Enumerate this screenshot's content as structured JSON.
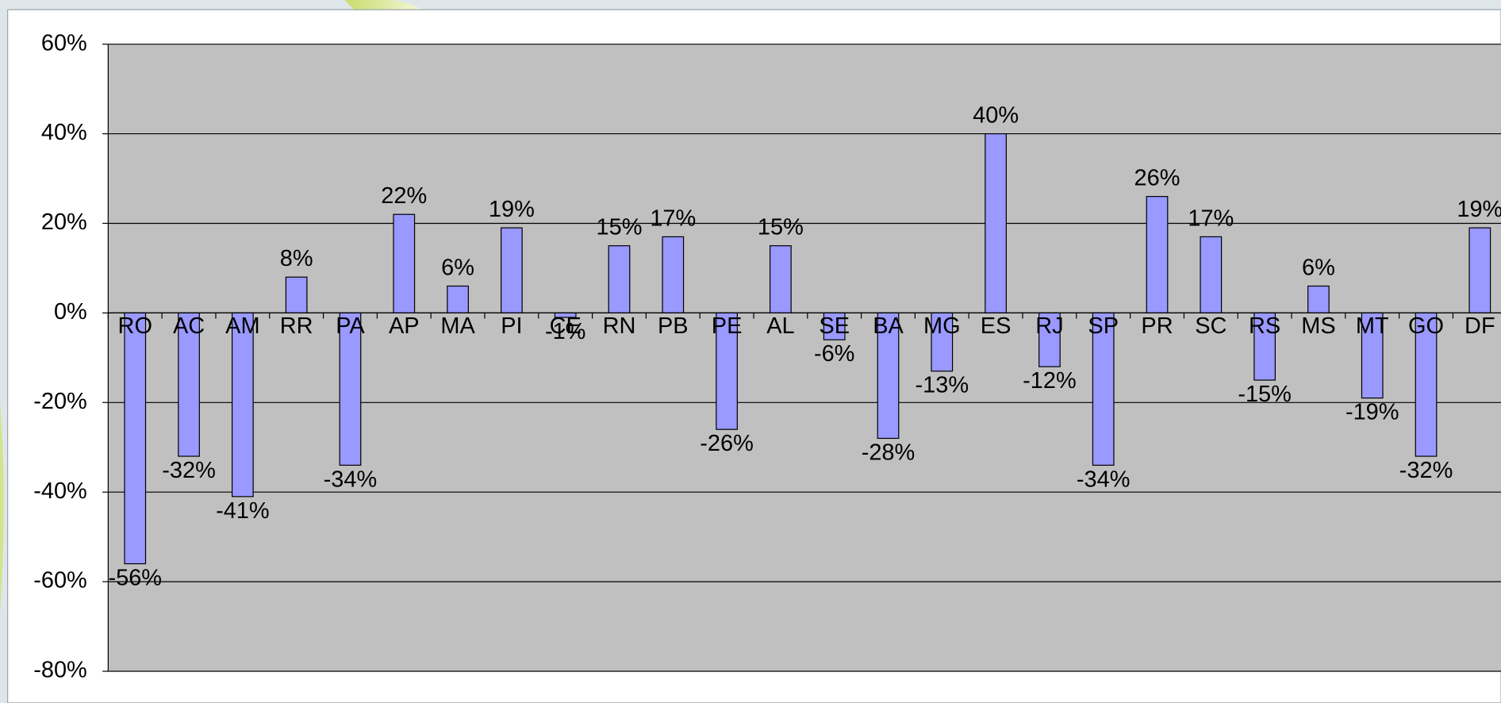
{
  "chart_data": {
    "type": "bar",
    "categories": [
      "RO",
      "AC",
      "AM",
      "RR",
      "PA",
      "AP",
      "MA",
      "PI",
      "CE",
      "RN",
      "PB",
      "PE",
      "AL",
      "SE",
      "BA",
      "MG",
      "ES",
      "RJ",
      "SP",
      "PR",
      "SC",
      "RS",
      "MS",
      "MT",
      "GO",
      "DF"
    ],
    "values": [
      -56,
      -32,
      -41,
      8,
      -34,
      22,
      6,
      19,
      -1,
      15,
      17,
      -26,
      15,
      -6,
      -28,
      -13,
      40,
      -12,
      -34,
      26,
      17,
      -15,
      6,
      -19,
      -32,
      19
    ],
    "value_labels": [
      "-56%",
      "-32%",
      "-41%",
      "8%",
      "-34%",
      "22%",
      "6%",
      "19%",
      "-1%",
      "15%",
      "17%",
      "-26%",
      "15%",
      "-6%",
      "-28%",
      "-13%",
      "40%",
      "-12%",
      "-34%",
      "26%",
      "17%",
      "-15%",
      "6%",
      "-19%",
      "-32%",
      "19%"
    ],
    "color": "#9999ff",
    "ylim": [
      -80,
      60
    ],
    "yticks": [
      {
        "value": -80,
        "label": "-80%"
      },
      {
        "value": -60,
        "label": "-60%"
      },
      {
        "value": -40,
        "label": "-40%"
      },
      {
        "value": -20,
        "label": "-20%"
      },
      {
        "value": 0,
        "label": "0%"
      },
      {
        "value": 20,
        "label": "20%"
      },
      {
        "value": 40,
        "label": "40%"
      },
      {
        "value": 60,
        "label": "60%"
      }
    ],
    "grid": true
  }
}
